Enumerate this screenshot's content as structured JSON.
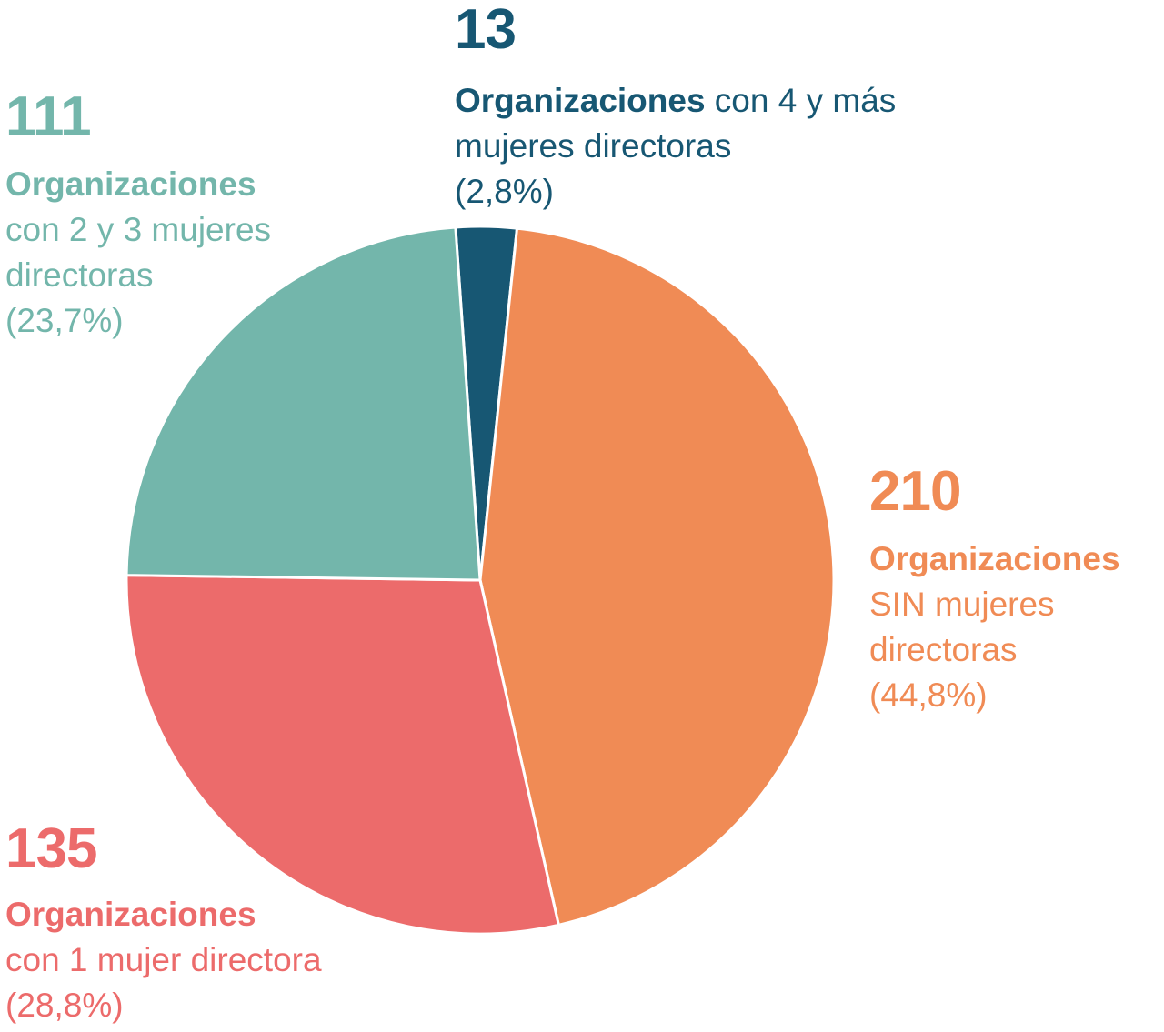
{
  "chart_data": {
    "type": "pie",
    "start_angle_deg": -4,
    "slices": [
      {
        "value": 13,
        "percent": 2.8,
        "count_label": "13",
        "label_bold": "Organizaciones",
        "label_rest": " con 4 y más mujeres directoras",
        "percent_label": "(2,8%)",
        "color": "#175773"
      },
      {
        "value": 210,
        "percent": 44.8,
        "count_label": "210",
        "label_bold": "Organizaciones",
        "label_rest": "SIN mujeres directoras",
        "percent_label": "(44,8%)",
        "color": "#f08b55"
      },
      {
        "value": 135,
        "percent": 28.8,
        "count_label": "135",
        "label_bold": "Organizaciones",
        "label_rest": "con 1 mujer directora",
        "percent_label": "(28,8%)",
        "color": "#ec6b6b"
      },
      {
        "value": 111,
        "percent": 23.7,
        "count_label": "111",
        "label_bold": "Organizaciones",
        "label_rest": "con 2 y 3 mujeres directoras",
        "percent_label": "(23,7%)",
        "color": "#73b6ab"
      }
    ]
  }
}
